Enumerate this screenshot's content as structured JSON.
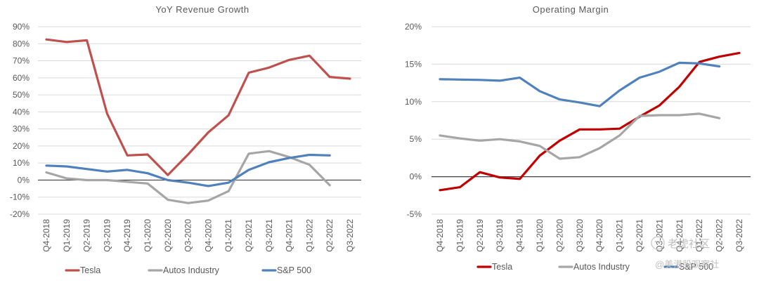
{
  "chart_data": [
    {
      "type": "line",
      "title": "YoY Revenue Growth",
      "categories": [
        "Q4-2018",
        "Q1-2019",
        "Q2-2019",
        "Q3-2019",
        "Q4-2019",
        "Q1-2020",
        "Q2-2020",
        "Q3-2020",
        "Q4-2020",
        "Q1-2021",
        "Q2-2021",
        "Q3-2021",
        "Q4-2021",
        "Q1-2022",
        "Q2-2022",
        "Q3-2022"
      ],
      "ylim": [
        -20,
        90
      ],
      "yticks": [
        -20,
        -10,
        0,
        10,
        20,
        30,
        40,
        50,
        60,
        70,
        80,
        90
      ],
      "ytick_labels": [
        "-20%",
        "-10%",
        "0%",
        "10%",
        "20%",
        "30%",
        "40%",
        "50%",
        "60%",
        "70%",
        "80%",
        "90%"
      ],
      "grid": true,
      "legend_position": "bottom",
      "series": [
        {
          "name": "Tesla",
          "color": "#c0504d",
          "values": [
            82.5,
            81,
            82,
            39,
            14.5,
            15,
            3,
            15,
            28,
            38,
            63,
            66,
            70.5,
            73,
            60.5,
            59.5
          ]
        },
        {
          "name": "Autos Industry",
          "color": "#a6a6a6",
          "values": [
            4.5,
            1,
            0,
            0,
            -1,
            -2,
            -11.5,
            -13.5,
            -12,
            -6.5,
            15.5,
            17,
            13.5,
            9,
            -3,
            null
          ]
        },
        {
          "name": "S&P 500",
          "color": "#4f81bd",
          "values": [
            8.5,
            8,
            6.5,
            5,
            6,
            4,
            0,
            -1.5,
            -3.5,
            -1.5,
            6,
            10.5,
            13,
            14.8,
            14.5,
            null
          ]
        }
      ]
    },
    {
      "type": "line",
      "title": "Operating Margin",
      "categories": [
        "Q4-2018",
        "Q1-2019",
        "Q2-2019",
        "Q3-2019",
        "Q4-2019",
        "Q1-2020",
        "Q2-2020",
        "Q3-2020",
        "Q4-2020",
        "Q1-2021",
        "Q2-2021",
        "Q3-2021",
        "Q4-2021",
        "Q1-2022",
        "Q2-2022",
        "Q3-2022"
      ],
      "ylim": [
        -5,
        20
      ],
      "yticks": [
        -5,
        0,
        5,
        10,
        15,
        20
      ],
      "ytick_labels": [
        "-5%",
        "0%",
        "5%",
        "10%",
        "15%",
        "20%"
      ],
      "grid": true,
      "legend_position": "bottom",
      "series": [
        {
          "name": "Tesla",
          "color": "#c00000",
          "values": [
            -1.8,
            -1.4,
            0.6,
            -0.1,
            -0.3,
            2.8,
            4.8,
            6.3,
            6.3,
            6.4,
            8,
            9.5,
            12,
            15.3,
            16,
            16.5
          ]
        },
        {
          "name": "Autos Industry",
          "color": "#a6a6a6",
          "values": [
            5.5,
            5.1,
            4.8,
            5,
            4.7,
            4.1,
            2.4,
            2.6,
            3.8,
            5.5,
            8.1,
            8.2,
            8.2,
            8.4,
            7.8,
            null
          ]
        },
        {
          "name": "S&P 500",
          "color": "#4f81bd",
          "values": [
            13,
            12.95,
            12.9,
            12.8,
            13.2,
            11.4,
            10.3,
            9.9,
            9.4,
            11.5,
            13.2,
            14,
            15.2,
            15.1,
            14.7,
            null
          ]
        }
      ]
    }
  ],
  "watermark": {
    "line1": "老虎社区",
    "line2": "@美港股观察社"
  }
}
